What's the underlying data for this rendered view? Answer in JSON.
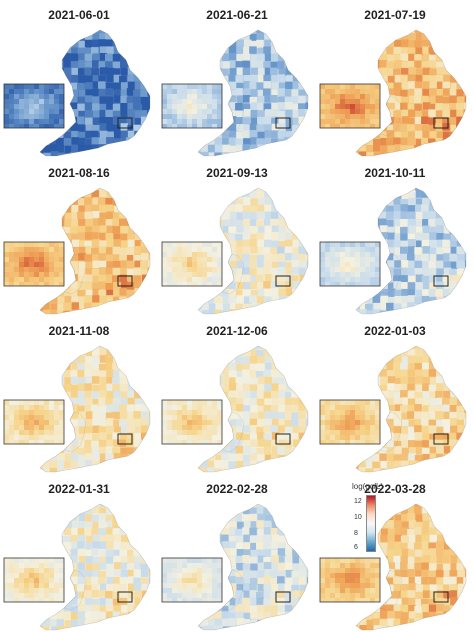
{
  "panels": [
    {
      "date": "2021-06-01",
      "level": 0.08
    },
    {
      "date": "2021-06-21",
      "level": 0.3
    },
    {
      "date": "2021-07-19",
      "level": 0.72
    },
    {
      "date": "2021-08-16",
      "level": 0.7
    },
    {
      "date": "2021-09-13",
      "level": 0.48
    },
    {
      "date": "2021-10-11",
      "level": 0.34
    },
    {
      "date": "2021-11-08",
      "level": 0.56
    },
    {
      "date": "2021-12-06",
      "level": 0.52
    },
    {
      "date": "2022-01-03",
      "level": 0.62
    },
    {
      "date": "2022-01-31",
      "level": 0.5
    },
    {
      "date": "2022-02-28",
      "level": 0.4
    },
    {
      "date": "2022-03-28",
      "level": 0.66
    }
  ],
  "legend": {
    "title": "log(gc/L)",
    "ticks": [
      "12",
      "10",
      "8",
      "6"
    ],
    "colors": [
      "#b2182b",
      "#ef8a62",
      "#fddbc7",
      "#f7f7f7",
      "#d1e5f0",
      "#67a9cf",
      "#2166ac"
    ]
  }
}
